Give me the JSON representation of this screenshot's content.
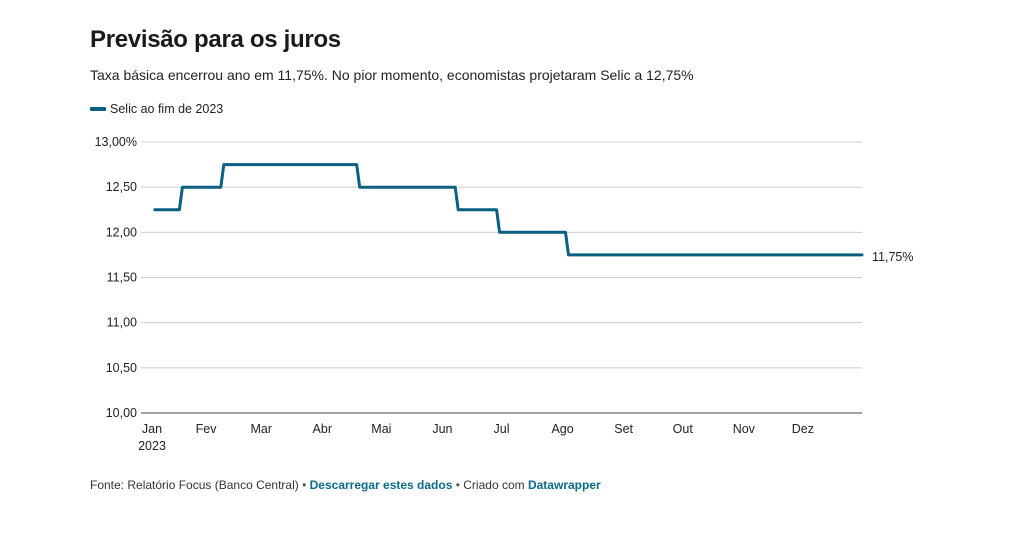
{
  "header": {
    "title": "Previsão para os juros",
    "subtitle": "Taxa básica encerrou ano em 11,75%. No pior momento, economistas projetaram Selic a 12,75%"
  },
  "footer": {
    "source": "Fonte: Relatório Focus (Banco Central)",
    "separator": " • ",
    "download_link": "Descarregar estes dados",
    "created_with": "Criado com",
    "tool_link": "Datawrapper"
  },
  "colors": {
    "line": "#0b5f80",
    "grid": "#cccccc",
    "text": "#222222",
    "link": "#0b6b8a"
  },
  "chart_data": {
    "type": "line",
    "xlim": [
      "2023-01-01",
      "2023-12-31"
    ],
    "ylim": [
      10.0,
      13.0
    ],
    "y_ticks": [
      10.0,
      10.5,
      11.0,
      11.5,
      12.0,
      12.5,
      13.0
    ],
    "y_tick_labels": [
      "10,00",
      "10,50",
      "11,00",
      "11,50",
      "12,00",
      "12,50",
      "13,00%"
    ],
    "x_ticks": [
      "2023-01-01",
      "2023-02-01",
      "2023-03-01",
      "2023-04-01",
      "2023-05-01",
      "2023-06-01",
      "2023-07-01",
      "2023-08-01",
      "2023-09-01",
      "2023-10-01",
      "2023-11-01",
      "2023-12-01"
    ],
    "x_tick_labels": [
      "Jan",
      "Fev",
      "Mar",
      "Abr",
      "Mai",
      "Jun",
      "Jul",
      "Ago",
      "Set",
      "Out",
      "Nov",
      "Dez"
    ],
    "x_tick_sublabel": "2023",
    "grid": true,
    "legend_position": "top-left",
    "series": [
      {
        "name": "Selic ao fim de 2023",
        "end_label": "11,75%",
        "step": true,
        "x": [
          "2023-01-06",
          "2023-01-20",
          "2023-02-10",
          "2023-04-20",
          "2023-06-09",
          "2023-06-30",
          "2023-08-04",
          "2023-12-31"
        ],
        "y": [
          12.25,
          12.5,
          12.75,
          12.5,
          12.25,
          12.0,
          11.75,
          11.75
        ]
      }
    ]
  }
}
